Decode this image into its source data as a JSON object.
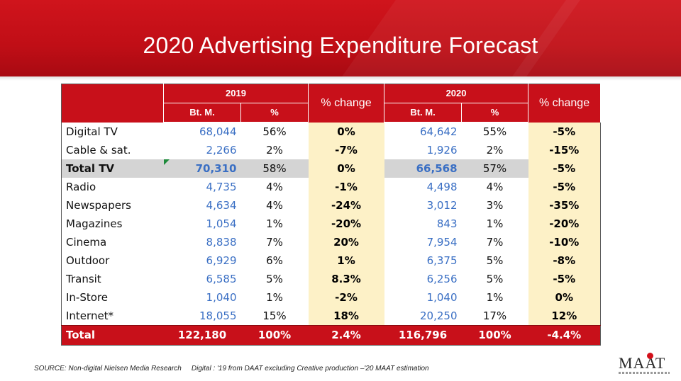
{
  "title": "2020 Advertising Expenditure Forecast",
  "header": {
    "year1": "2019",
    "year2": "2020",
    "change": "% change",
    "bt": "Bt. M.",
    "pct": "%"
  },
  "rows": [
    {
      "label": "Digital TV",
      "bt2019": "68,044",
      "pct2019": "56%",
      "chg2019": "0%",
      "bt2020": "64,642",
      "pct2020": "55%",
      "chg2020": "-5%"
    },
    {
      "label": "Cable & sat.",
      "bt2019": "2,266",
      "pct2019": "2%",
      "chg2019": "-7%",
      "bt2020": "1,926",
      "pct2020": "2%",
      "chg2020": "-15%"
    },
    {
      "label": "Total TV",
      "bt2019": "70,310",
      "pct2019": "58%",
      "chg2019": "0%",
      "bt2020": "66,568",
      "pct2020": "57%",
      "chg2020": "-5%"
    },
    {
      "label": "Radio",
      "bt2019": "4,735",
      "pct2019": "4%",
      "chg2019": "-1%",
      "bt2020": "4,498",
      "pct2020": "4%",
      "chg2020": "-5%"
    },
    {
      "label": "Newspapers",
      "bt2019": "4,634",
      "pct2019": "4%",
      "chg2019": "-24%",
      "bt2020": "3,012",
      "pct2020": "3%",
      "chg2020": "-35%"
    },
    {
      "label": "Magazines",
      "bt2019": "1,054",
      "pct2019": "1%",
      "chg2019": "-20%",
      "bt2020": "843",
      "pct2020": "1%",
      "chg2020": "-20%"
    },
    {
      "label": "Cinema",
      "bt2019": "8,838",
      "pct2019": "7%",
      "chg2019": "20%",
      "bt2020": "7,954",
      "pct2020": "7%",
      "chg2020": "-10%"
    },
    {
      "label": "Outdoor",
      "bt2019": "6,929",
      "pct2019": "6%",
      "chg2019": "1%",
      "bt2020": "6,375",
      "pct2020": "5%",
      "chg2020": "-8%"
    },
    {
      "label": "Transit",
      "bt2019": "6,585",
      "pct2019": "5%",
      "chg2019": "8.3%",
      "bt2020": "6,256",
      "pct2020": "5%",
      "chg2020": "-5%"
    },
    {
      "label": "In-Store",
      "bt2019": "1,040",
      "pct2019": "1%",
      "chg2019": "-2%",
      "bt2020": "1,040",
      "pct2020": "1%",
      "chg2020": "0%"
    },
    {
      "label": "Internet*",
      "bt2019": "18,055",
      "pct2019": "15%",
      "chg2019": "18%",
      "bt2020": "20,250",
      "pct2020": "17%",
      "chg2020": "12%"
    }
  ],
  "total": {
    "label": "Total",
    "bt2019": "122,180",
    "pct2019": "100%",
    "chg2019": "2.4%",
    "bt2020": "116,796",
    "pct2020": "100%",
    "chg2020": "-4.4%"
  },
  "source": {
    "left": "SOURCE: Non-digital Nielsen Media Research",
    "right": "Digital : '19 from DAAT excluding Creative production –'20 MAAT estimation"
  },
  "logo": {
    "text": "MAAT",
    "icon": "maat-logo-icon"
  },
  "colors": {
    "banner": "#c8101a",
    "header": "#c8101a",
    "change_bg": "#fdf1c7",
    "highlight_bg": "#d4d4d4",
    "value_blue": "#3a6fc4"
  }
}
